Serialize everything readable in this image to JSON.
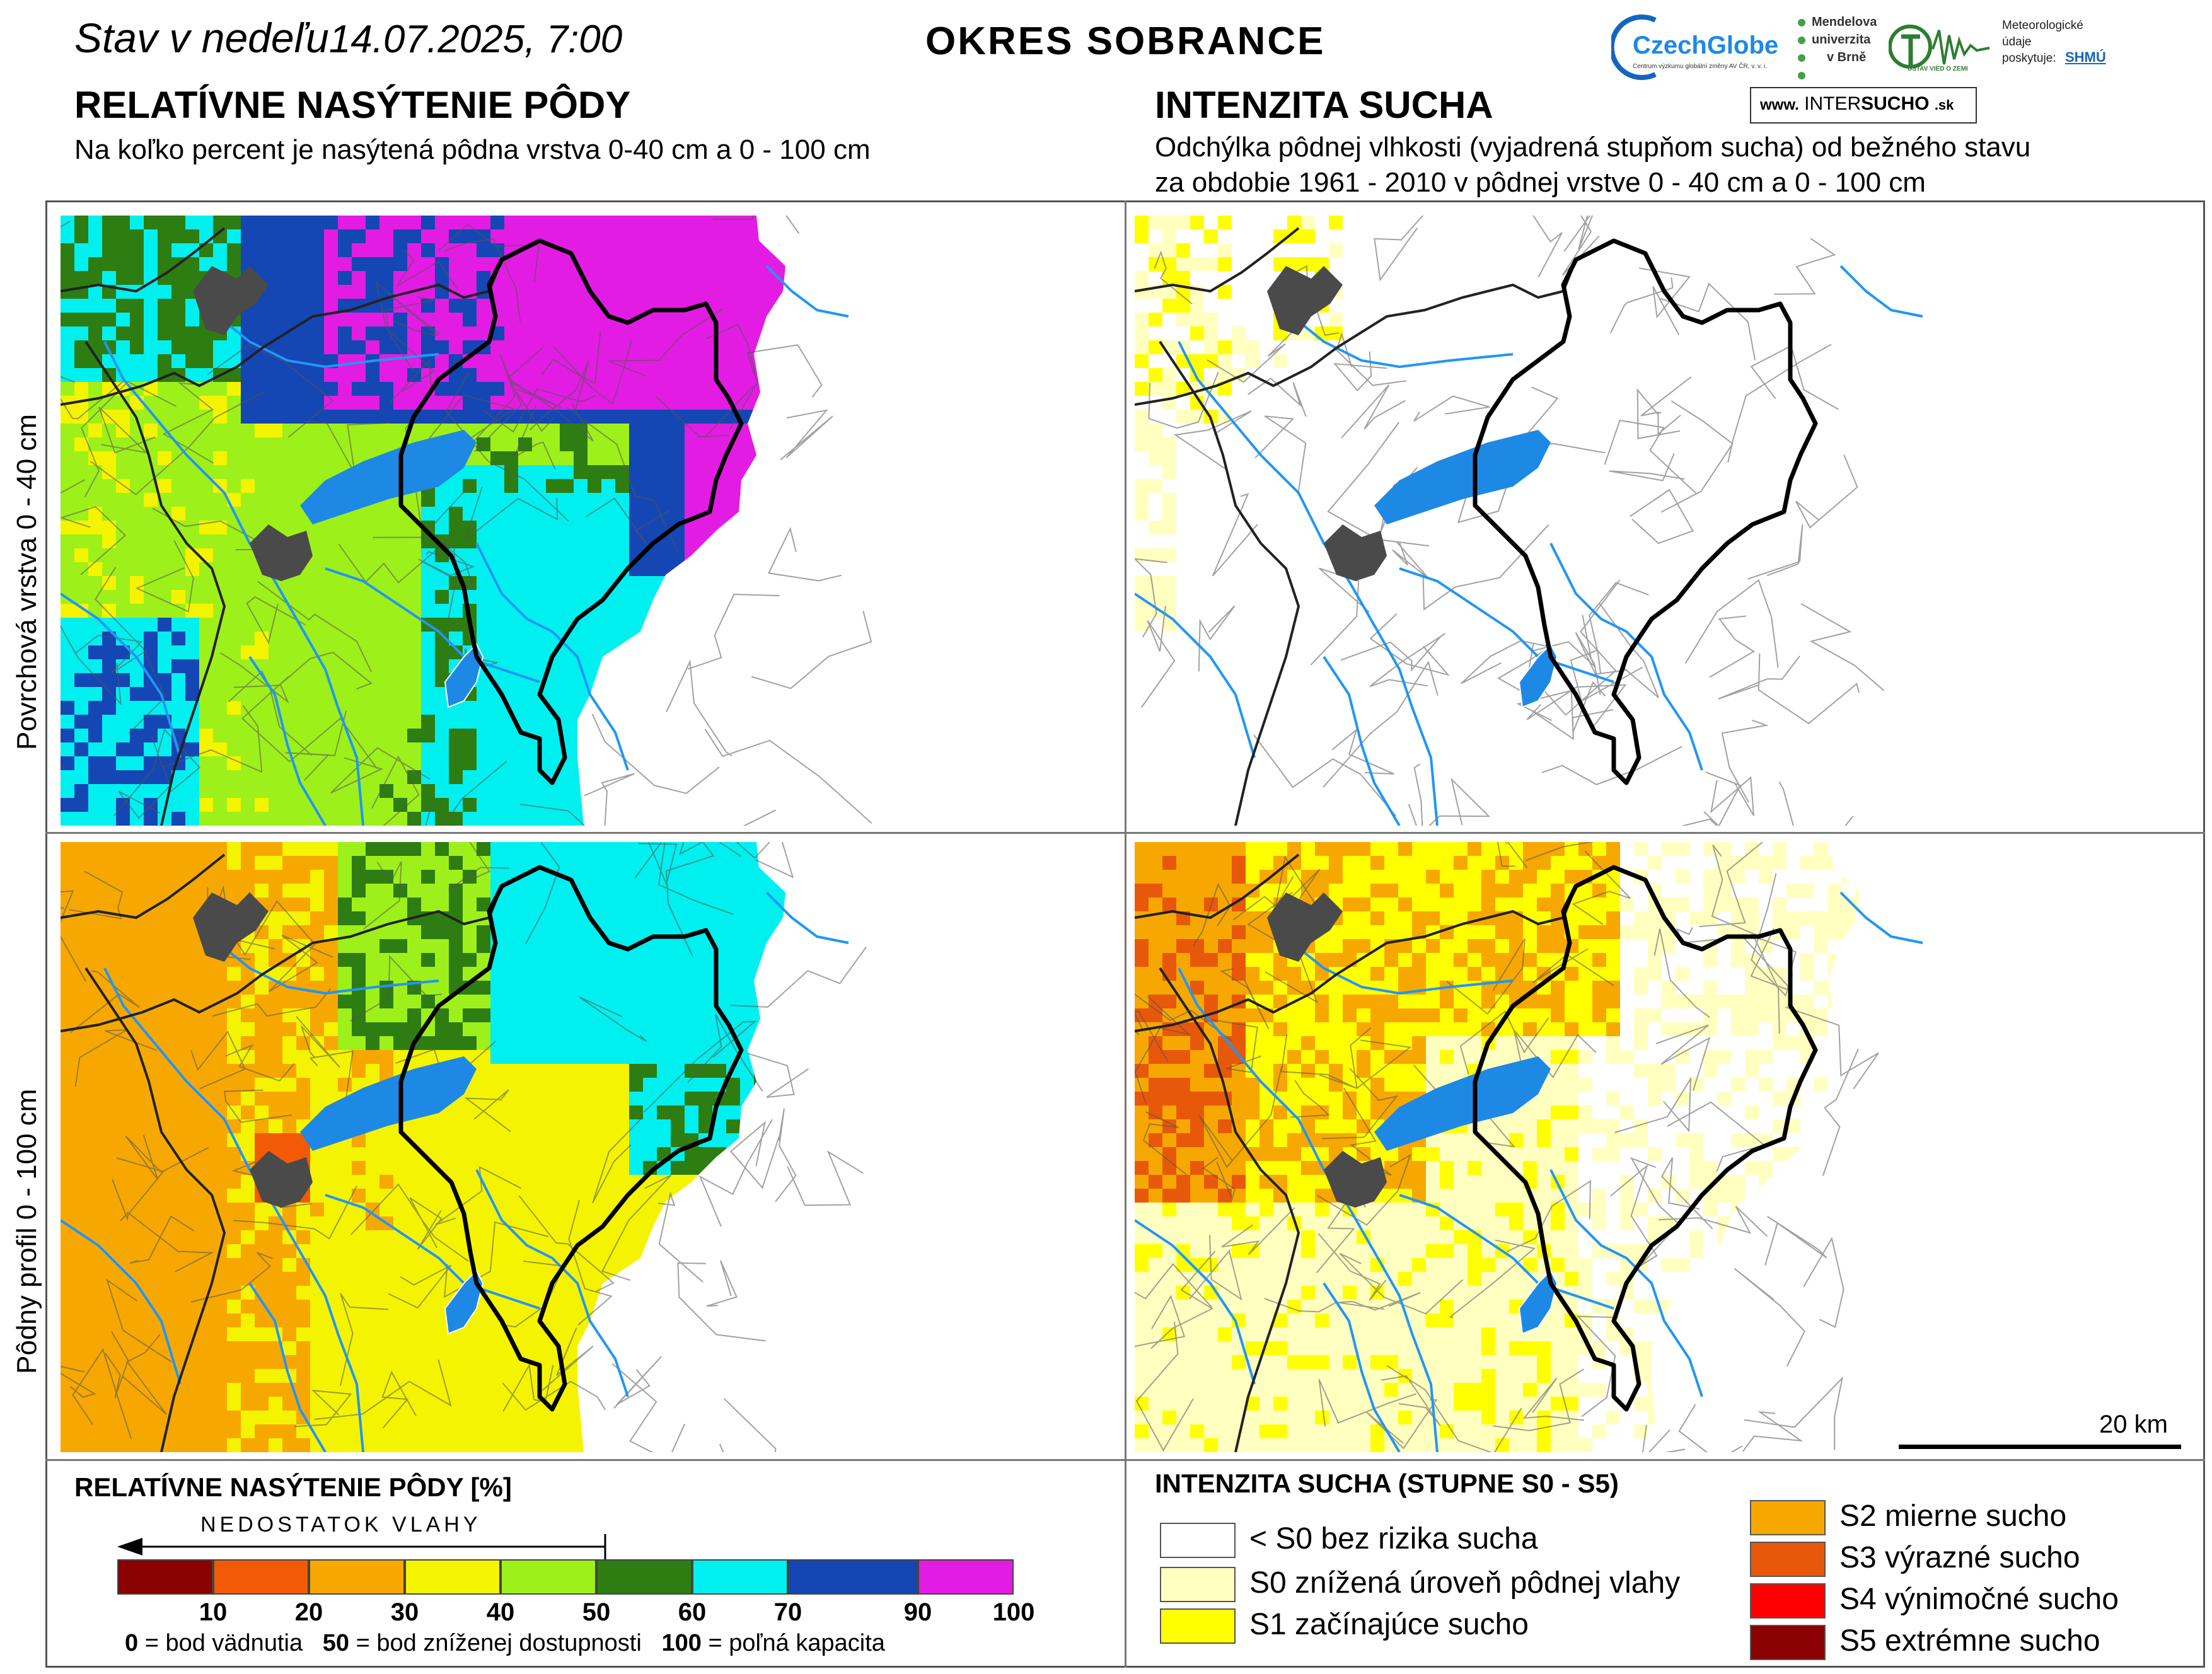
{
  "header": {
    "date_prefix": "Stav v nedeľu",
    "date": "14.07.2025, 7:00",
    "district": "OKRES SOBRANCE"
  },
  "left_section": {
    "title": "RELATÍVNE NASÝTENIE PÔDY",
    "subtitle": "Na koľko percent je nasýtená pôdna vrstva 0-40 cm a 0 - 100 cm"
  },
  "right_section": {
    "title": "INTENZITA SUCHA",
    "subtitle_line1": "Odchýlka pôdnej vlhkosti (vyjadrená stupňom sucha) od bežného stavu",
    "subtitle_line2": "za obdobie 1961 - 2010 v pôdnej vrstve 0 - 40 cm a 0 - 100 cm"
  },
  "logos": {
    "czechglobe": "CzechGlobe",
    "czechglobe_sub": "Centrum výzkumu globální změny AV ČR, v. v. i.",
    "mendel_line1": "Mendelova",
    "mendel_line2": "univerzita",
    "mendel_line3": "v Brně",
    "ustav": "ÚSTAV VIED O ZEMI",
    "meteo_line1": "Meteorologické",
    "meteo_line2": "údaje",
    "meteo_line3": "poskytuje:",
    "shmu": "SHMÚ",
    "intersucho_www": "www.",
    "intersucho_inter": "INTER",
    "intersucho_sucho": "SUCHO",
    "intersucho_sk": ".sk"
  },
  "row_labels": {
    "top": "Povrchová vrstva 0 - 40 cm",
    "bottom": "Pôdny profil 0 - 100 cm"
  },
  "scale_bar": {
    "label": "20 km"
  },
  "saturation_legend": {
    "title": "RELATÍVNE NASÝTENIE PÔDY [%]",
    "arrow_label": "NEDOSTATOK VLAHY",
    "ticks": [
      "10",
      "20",
      "30",
      "40",
      "50",
      "60",
      "70",
      "90",
      "100"
    ],
    "colors": [
      "#8b0000",
      "#f25a06",
      "#f7a800",
      "#f4f400",
      "#9ef01a",
      "#2e7d12",
      "#00f0f0",
      "#1446b4",
      "#e31ce3"
    ],
    "note_0_val": "0",
    "note_0_text": "= bod vädnutia",
    "note_50_val": "50",
    "note_50_text": "= bod zníženej dostupnosti",
    "note_100_val": "100",
    "note_100_text": "= poľná kapacita"
  },
  "drought_legend": {
    "title": "INTENZITA SUCHA (STUPNE S0 - S5)",
    "items": [
      {
        "label": "< S0 bez rizika sucha",
        "color": "#ffffff"
      },
      {
        "label": "S0 znížená úroveň pôdnej vlahy",
        "color": "#ffffc0"
      },
      {
        "label": "S1 začínajúce sucho",
        "color": "#ffff00"
      },
      {
        "label": "S2 mierne sucho",
        "color": "#f7a800"
      },
      {
        "label": "S3 výrazné sucho",
        "color": "#e8580a"
      },
      {
        "label": "S4 výnimočné sucho",
        "color": "#ff0000"
      },
      {
        "label": "S5 extrémne sucho",
        "color": "#8b0000"
      }
    ]
  },
  "colors": {
    "water": "#1e88e5",
    "river": "#2196f3",
    "town": "#4a4a4a",
    "district_border": "#000000"
  }
}
